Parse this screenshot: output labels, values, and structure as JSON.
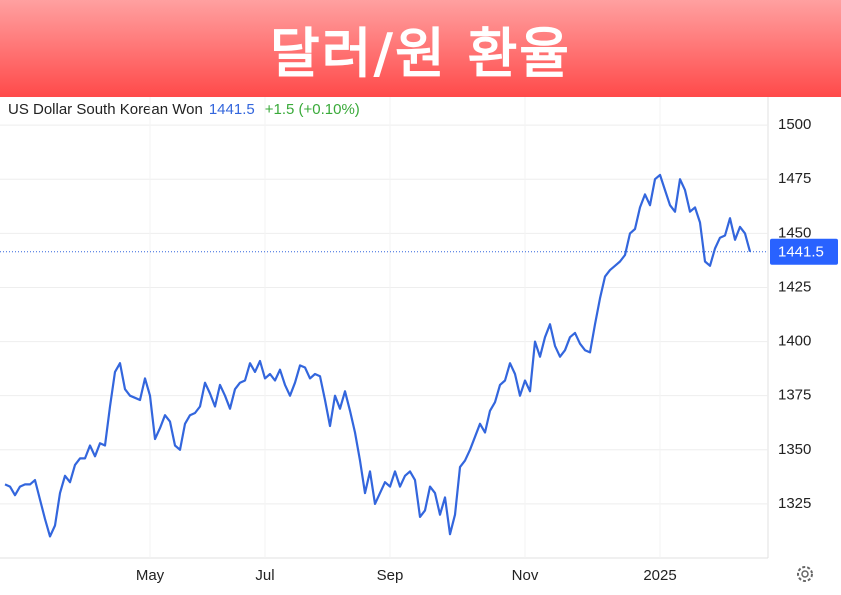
{
  "chart_data": {
    "type": "line",
    "title": "달러/원 환율",
    "change": "+1.5 (+0.10%)",
    "categories": [
      null,
      null,
      null,
      null,
      null,
      null,
      null,
      null,
      null,
      null,
      null,
      null,
      null,
      null,
      null,
      null,
      null,
      null,
      null,
      null,
      null,
      null,
      null,
      null,
      null,
      null,
      null,
      null,
      null,
      "May",
      null,
      null,
      null,
      null,
      null,
      null,
      null,
      null,
      null,
      null,
      null,
      null,
      null,
      null,
      null,
      null,
      null,
      null,
      null,
      null,
      null,
      null,
      "Jul",
      null,
      null,
      null,
      null,
      null,
      null,
      null,
      null,
      null,
      null,
      null,
      null,
      null,
      null,
      null,
      null,
      null,
      null,
      null,
      null,
      null,
      null,
      null,
      null,
      "Sep",
      null,
      null,
      null,
      null,
      null,
      null,
      null,
      null,
      null,
      null,
      null,
      null,
      null,
      null,
      null,
      null,
      null,
      null,
      null,
      null,
      null,
      null,
      null,
      null,
      null,
      null,
      "Nov",
      null,
      null,
      null,
      null,
      null,
      null,
      null,
      null,
      null,
      null,
      null,
      null,
      null,
      null,
      null,
      null,
      null,
      null,
      null,
      null,
      null,
      null,
      null,
      null,
      null,
      null,
      "2025",
      null,
      null,
      null,
      null,
      null,
      null,
      null,
      null,
      null,
      null,
      null,
      null,
      null,
      null,
      null,
      null,
      null,
      null
    ],
    "series": [
      {
        "name": "US Dollar South Korean Won",
        "color": "#3366dd",
        "values": [
          1334,
          1333,
          1329,
          1333,
          1334,
          1334,
          1336,
          1327,
          1318,
          1310,
          1315,
          1330,
          1338,
          1335,
          1343,
          1346,
          1346,
          1352,
          1347,
          1353,
          1352,
          1370,
          1386,
          1390,
          1378,
          1375,
          1374,
          1373,
          1383,
          1375,
          1355,
          1360,
          1366,
          1363,
          1352,
          1350,
          1362,
          1366,
          1367,
          1370,
          1381,
          1376,
          1370,
          1380,
          1375,
          1369,
          1378,
          1381,
          1382,
          1390,
          1386,
          1391,
          1383,
          1385,
          1382,
          1387,
          1380,
          1375,
          1381,
          1389,
          1388,
          1383,
          1385,
          1384,
          1373,
          1361,
          1375,
          1369,
          1377,
          1368,
          1358,
          1345,
          1330,
          1340,
          1325,
          1330,
          1335,
          1333,
          1340,
          1333,
          1338,
          1340,
          1336,
          1319,
          1322,
          1333,
          1330,
          1320,
          1328,
          1311,
          1320,
          1342,
          1345,
          1350,
          1356,
          1362,
          1358,
          1368,
          1372,
          1380,
          1382,
          1390,
          1385,
          1375,
          1382,
          1377,
          1400,
          1393,
          1402,
          1408,
          1398,
          1393,
          1396,
          1402,
          1404,
          1399,
          1396,
          1395,
          1408,
          1420,
          1430,
          1433,
          1435,
          1437,
          1440,
          1450,
          1452,
          1462,
          1468,
          1463,
          1475,
          1477,
          1470,
          1463,
          1460,
          1475,
          1470,
          1460,
          1462,
          1455,
          1437,
          1435,
          1443,
          1448,
          1449,
          1457,
          1447,
          1453,
          1450,
          1441.5
        ]
      }
    ],
    "ylim": [
      1300,
      1513
    ],
    "yticks": [
      1325,
      1350,
      1375,
      1400,
      1425,
      1450,
      1475,
      1500
    ],
    "grid": true
  }
}
